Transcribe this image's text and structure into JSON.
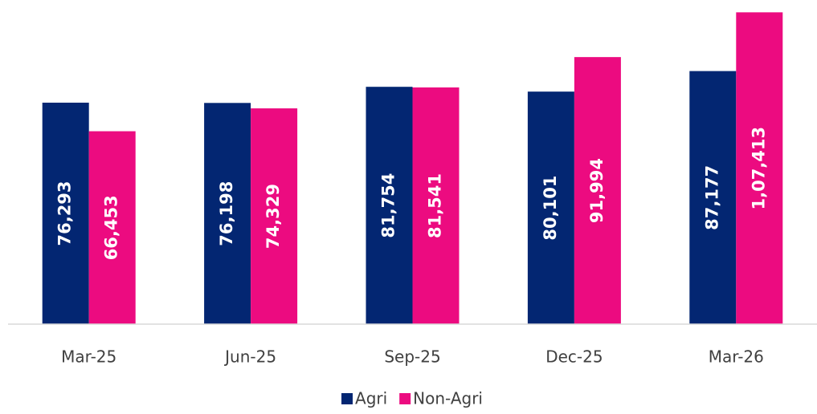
{
  "chart_data": {
    "type": "bar",
    "categories": [
      "Mar-25",
      "Jun-25",
      "Sep-25",
      "Dec-25",
      "Mar-26"
    ],
    "series": [
      {
        "name": "Agri",
        "color": "#032672",
        "values": [
          76293,
          76198,
          81754,
          80101,
          87177
        ],
        "value_labels": [
          "76,293",
          "76,198",
          "81,754",
          "80,101",
          "87,177"
        ]
      },
      {
        "name": "Non-Agri",
        "color": "#ec0b80",
        "values": [
          66453,
          74329,
          81541,
          91994,
          107413
        ],
        "value_labels": [
          "66,453",
          "74,329",
          "81,541",
          "91,994",
          "1,07,413"
        ]
      }
    ],
    "ylim": [
      0,
      110000
    ],
    "grid": false,
    "legend": "bottom"
  }
}
